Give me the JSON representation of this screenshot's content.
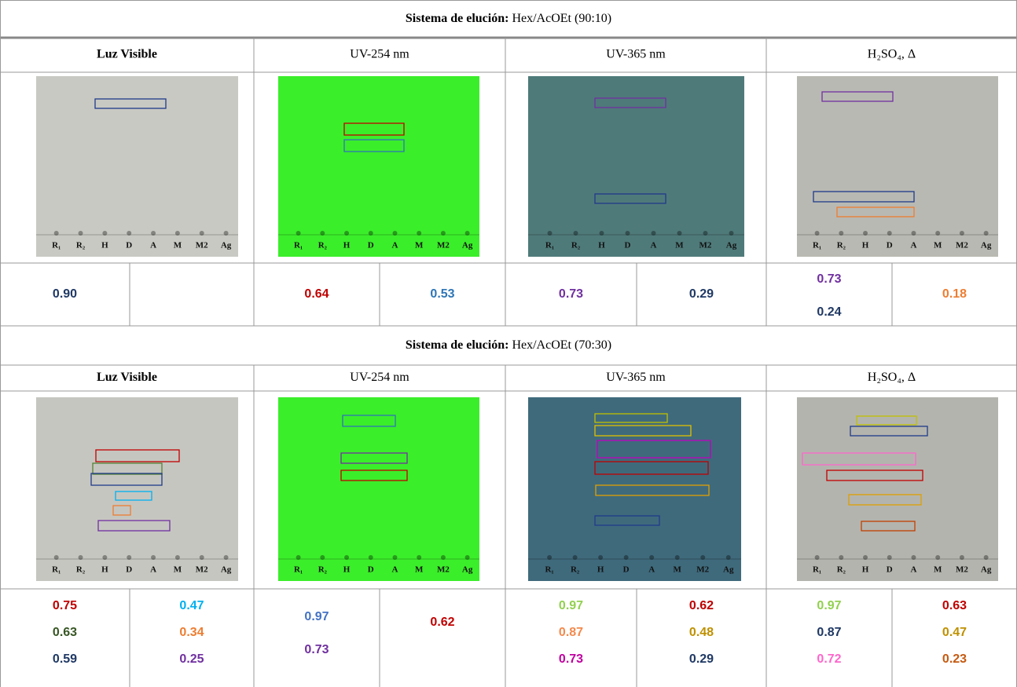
{
  "sections": [
    {
      "title": {
        "label": "Sistema de elución:",
        "value": "Hex/AcOEt (90:10)"
      },
      "columns": [
        "Luz Visible",
        "UV-254 nm",
        "UV-365 nm",
        "H₂SO₄, Δ"
      ],
      "rf": [
        [
          [
            {
              "text": "0.90",
              "color": "#1f3864"
            }
          ],
          []
        ],
        [
          [
            {
              "text": "0.64",
              "color": "#c00000"
            }
          ],
          [
            {
              "text": "0.53",
              "color": "#2e75b6"
            }
          ]
        ],
        [
          [
            {
              "text": "0.73",
              "color": "#7030a0"
            }
          ],
          [
            {
              "text": "0.29",
              "color": "#1f3864"
            }
          ]
        ],
        [
          [
            {
              "text": "0.73",
              "color": "#7030a0"
            },
            {
              "text": "0.24",
              "color": "#1f3864"
            }
          ],
          [
            {
              "text": "0.18",
              "color": "#ed7d31"
            }
          ]
        ]
      ]
    },
    {
      "title": {
        "label": "Sistema de elución:",
        "value": "Hex/AcOEt (70:30)"
      },
      "columns": [
        "Luz Visible",
        "UV-254 nm",
        "UV-365 nm",
        "H₂SO₄, Δ"
      ],
      "rf": [
        [
          [
            {
              "text": "0.75",
              "color": "#c00000"
            },
            {
              "text": "0.63",
              "color": "#375623"
            },
            {
              "text": "0.59",
              "color": "#1f3864"
            }
          ],
          [
            {
              "text": "0.47",
              "color": "#00b0f0"
            },
            {
              "text": "0.34",
              "color": "#ed7d31"
            },
            {
              "text": "0.25",
              "color": "#7030a0"
            }
          ]
        ],
        [
          [
            {
              "text": "0.97",
              "color": "#4472c4"
            },
            {
              "text": "0.73",
              "color": "#7030a0"
            }
          ],
          [
            {
              "text": "0.62",
              "color": "#c00000"
            }
          ]
        ],
        [
          [
            {
              "text": "0.97",
              "color": "#92d050"
            },
            {
              "text": "0.87",
              "color": "#f4894b"
            },
            {
              "text": "0.73",
              "color": "#c000a0"
            }
          ],
          [
            {
              "text": "0.62",
              "color": "#c00000"
            },
            {
              "text": "0.48",
              "color": "#bf9000"
            },
            {
              "text": "0.29",
              "color": "#1f3864"
            }
          ]
        ],
        [
          [
            {
              "text": "0.97",
              "color": "#92d050"
            },
            {
              "text": "0.87",
              "color": "#1f3864"
            },
            {
              "text": "0.72",
              "color": "#ff66cc"
            }
          ],
          [
            {
              "text": "0.63",
              "color": "#c00000"
            },
            {
              "text": "0.47",
              "color": "#bf9000"
            },
            {
              "text": "0.23",
              "color": "#c55a11"
            }
          ]
        ]
      ]
    }
  ],
  "lanes": [
    "R₁",
    "R₂",
    "H",
    "D",
    "A",
    "M",
    "M2",
    "Ag"
  ]
}
